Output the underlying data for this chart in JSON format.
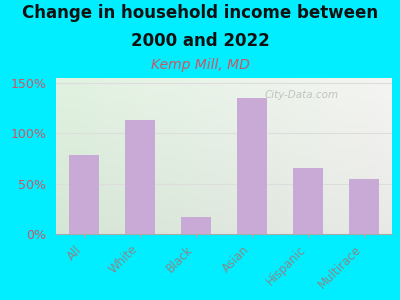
{
  "title_line1": "Change in household income between",
  "title_line2": "2000 and 2022",
  "subtitle": "Kemp Mill, MD",
  "categories": [
    "All",
    "White",
    "Black",
    "Asian",
    "Hispanic",
    "Multirace"
  ],
  "values": [
    78,
    113,
    17,
    135,
    66,
    55
  ],
  "bar_color": "#c9aad6",
  "background_outer": "#00eeff",
  "title_fontsize": 12,
  "subtitle_fontsize": 10,
  "subtitle_color": "#cc5566",
  "ylabel_ticks": [
    0,
    50,
    100,
    150
  ],
  "ylabel_labels": [
    "0%",
    "50%",
    "100%",
    "150%"
  ],
  "ylim": [
    0,
    155
  ],
  "tick_label_color": "#cc5566",
  "tick_x_color": "#888888",
  "watermark": "City-Data.com",
  "grid_color": "#dddddd",
  "inner_bg_left": "#d8eeda",
  "inner_bg_right": "#f0f0ee"
}
